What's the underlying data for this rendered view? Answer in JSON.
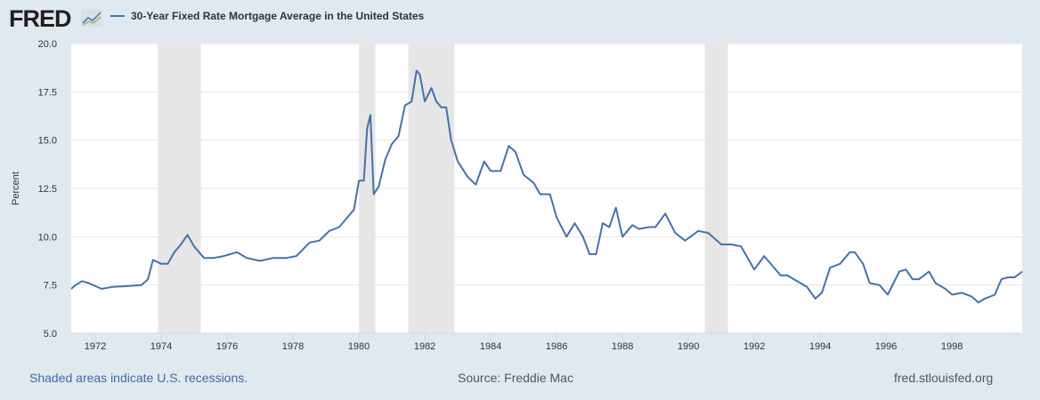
{
  "header": {
    "logo": "FRED",
    "series_title": "30-Year Fixed Rate Mortgage Average in the United States"
  },
  "footer": {
    "recession_note": "Shaded areas indicate U.S. recessions.",
    "source": "Source: Freddie Mac",
    "site": "fred.stlouisfed.org"
  },
  "colors": {
    "line": "#4572a7",
    "recession": "#e6e6e6",
    "background": "#e1e9f0"
  },
  "chart_data": {
    "type": "line",
    "title": "30-Year Fixed Rate Mortgage Average in the United States",
    "ylabel": "Percent",
    "xlabel": "",
    "ylim": [
      5,
      20
    ],
    "xlim": [
      1971.27,
      2000.13
    ],
    "y_ticks": [
      "5.0",
      "7.5",
      "10.0",
      "12.5",
      "15.0",
      "17.5",
      "20.0"
    ],
    "x_ticks": [
      "1972",
      "1974",
      "1976",
      "1978",
      "1980",
      "1982",
      "1984",
      "1986",
      "1988",
      "1990",
      "1992",
      "1994",
      "1996",
      "1998"
    ],
    "grid": "horizontal",
    "recessions": [
      [
        1973.9,
        1975.2
      ],
      [
        1980.0,
        1980.5
      ],
      [
        1981.5,
        1982.9
      ],
      [
        1990.5,
        1991.2
      ]
    ],
    "series": [
      {
        "name": "30-Year Fixed Rate Mortgage Average in the United States",
        "x": [
          1971.27,
          1971.4,
          1971.6,
          1971.8,
          1972.0,
          1972.2,
          1972.5,
          1973.0,
          1973.4,
          1973.6,
          1973.75,
          1974.0,
          1974.2,
          1974.4,
          1974.6,
          1974.8,
          1975.0,
          1975.3,
          1975.6,
          1975.9,
          1976.3,
          1976.6,
          1977.0,
          1977.4,
          1977.8,
          1978.1,
          1978.5,
          1978.8,
          1979.1,
          1979.4,
          1979.7,
          1979.85,
          1980.0,
          1980.15,
          1980.25,
          1980.35,
          1980.45,
          1980.6,
          1980.8,
          1981.0,
          1981.2,
          1981.4,
          1981.6,
          1981.75,
          1981.85,
          1982.0,
          1982.2,
          1982.35,
          1982.5,
          1982.65,
          1982.8,
          1983.0,
          1983.3,
          1983.55,
          1983.8,
          1984.0,
          1984.3,
          1984.55,
          1984.75,
          1985.0,
          1985.3,
          1985.5,
          1985.8,
          1986.0,
          1986.3,
          1986.55,
          1986.8,
          1987.0,
          1987.2,
          1987.4,
          1987.6,
          1987.8,
          1988.0,
          1988.3,
          1988.5,
          1988.8,
          1989.0,
          1989.3,
          1989.6,
          1989.9,
          1990.3,
          1990.6,
          1991.0,
          1991.3,
          1991.6,
          1992.0,
          1992.3,
          1992.6,
          1992.8,
          1993.0,
          1993.3,
          1993.6,
          1993.85,
          1994.05,
          1994.3,
          1994.6,
          1994.9,
          1995.05,
          1995.3,
          1995.5,
          1995.8,
          1996.05,
          1996.4,
          1996.6,
          1996.8,
          1997.0,
          1997.3,
          1997.5,
          1997.8,
          1998.0,
          1998.3,
          1998.6,
          1998.8,
          1999.0,
          1999.3,
          1999.5,
          1999.7,
          1999.9,
          2000.13
        ],
        "values": [
          7.3,
          7.5,
          7.7,
          7.6,
          7.45,
          7.3,
          7.4,
          7.45,
          7.5,
          7.8,
          8.8,
          8.6,
          8.6,
          9.2,
          9.6,
          10.1,
          9.5,
          8.9,
          8.9,
          9.0,
          9.2,
          8.9,
          8.75,
          8.9,
          8.9,
          9.0,
          9.7,
          9.8,
          10.3,
          10.5,
          11.1,
          11.4,
          12.9,
          12.9,
          15.6,
          16.3,
          12.2,
          12.6,
          14.0,
          14.8,
          15.2,
          16.8,
          17.0,
          18.6,
          18.4,
          17.0,
          17.7,
          17.0,
          16.7,
          16.7,
          15.0,
          13.9,
          13.1,
          12.7,
          13.9,
          13.4,
          13.4,
          14.7,
          14.4,
          13.2,
          12.8,
          12.2,
          12.2,
          11.0,
          10.0,
          10.7,
          10.0,
          9.1,
          9.1,
          10.7,
          10.5,
          11.5,
          10.0,
          10.6,
          10.4,
          10.5,
          10.5,
          11.2,
          10.2,
          9.8,
          10.3,
          10.2,
          9.6,
          9.6,
          9.5,
          8.3,
          9.0,
          8.4,
          8.0,
          8.0,
          7.7,
          7.4,
          6.8,
          7.1,
          8.4,
          8.6,
          9.2,
          9.2,
          8.6,
          7.6,
          7.5,
          7.0,
          8.2,
          8.3,
          7.8,
          7.8,
          8.2,
          7.6,
          7.3,
          7.0,
          7.1,
          6.9,
          6.6,
          6.8,
          7.0,
          7.8,
          7.9,
          7.9,
          8.2
        ]
      }
    ]
  }
}
